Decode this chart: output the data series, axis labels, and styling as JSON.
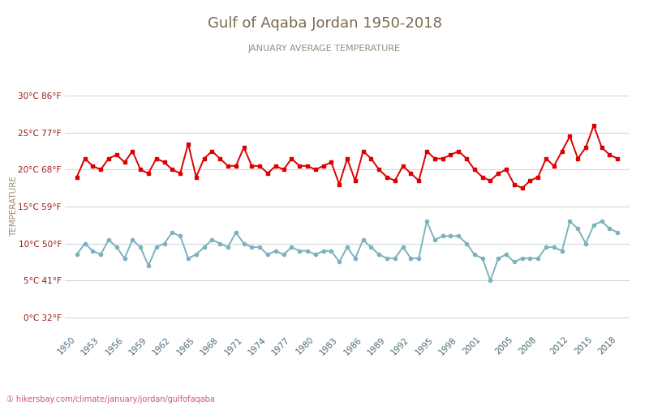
{
  "title": "Gulf of Aqaba Jordan 1950-2018",
  "subtitle": "JANUARY AVERAGE TEMPERATURE",
  "ylabel": "TEMPERATURE",
  "watermark": "① hikersbay.com/climate/january/jordan/gulfofaqaba",
  "title_color": "#7a6a50",
  "subtitle_color": "#9a8a7a",
  "bg_color": "#ffffff",
  "grid_color": "#d0d8dd",
  "years": [
    1950,
    1951,
    1952,
    1953,
    1954,
    1955,
    1956,
    1957,
    1958,
    1959,
    1960,
    1961,
    1962,
    1963,
    1964,
    1965,
    1966,
    1967,
    1968,
    1969,
    1970,
    1971,
    1972,
    1973,
    1974,
    1975,
    1976,
    1977,
    1978,
    1979,
    1980,
    1981,
    1982,
    1983,
    1984,
    1985,
    1986,
    1987,
    1988,
    1989,
    1990,
    1991,
    1992,
    1993,
    1994,
    1995,
    1996,
    1997,
    1998,
    1999,
    2000,
    2001,
    2002,
    2003,
    2004,
    2005,
    2006,
    2007,
    2008,
    2009,
    2010,
    2011,
    2012,
    2013,
    2014,
    2015,
    2016,
    2017,
    2018
  ],
  "day_temps": [
    19.0,
    21.5,
    20.5,
    20.0,
    21.5,
    22.0,
    21.0,
    22.5,
    20.0,
    19.5,
    21.5,
    21.0,
    20.0,
    19.5,
    23.5,
    19.0,
    21.5,
    22.5,
    21.5,
    20.5,
    20.5,
    23.0,
    20.5,
    20.5,
    19.5,
    20.5,
    20.0,
    21.5,
    20.5,
    20.5,
    20.0,
    20.5,
    21.0,
    18.0,
    21.5,
    18.5,
    22.5,
    21.5,
    20.0,
    19.0,
    18.5,
    20.5,
    19.5,
    18.5,
    22.5,
    21.5,
    21.5,
    22.0,
    22.5,
    21.5,
    20.0,
    19.0,
    18.5,
    19.5,
    20.0,
    18.0,
    17.5,
    18.5,
    19.0,
    21.5,
    20.5,
    22.5,
    24.5,
    21.5,
    23.0,
    26.0,
    23.0,
    22.0,
    21.5
  ],
  "night_temps": [
    8.5,
    10.0,
    9.0,
    8.5,
    10.5,
    9.5,
    8.0,
    10.5,
    9.5,
    7.0,
    9.5,
    10.0,
    11.5,
    11.0,
    8.0,
    8.5,
    9.5,
    10.5,
    10.0,
    9.5,
    11.5,
    10.0,
    9.5,
    9.5,
    8.5,
    9.0,
    8.5,
    9.5,
    9.0,
    9.0,
    8.5,
    9.0,
    9.0,
    7.5,
    9.5,
    8.0,
    10.5,
    9.5,
    8.5,
    8.0,
    8.0,
    9.5,
    8.0,
    8.0,
    13.0,
    10.5,
    11.0,
    11.0,
    11.0,
    10.0,
    8.5,
    8.0,
    5.0,
    8.0,
    8.5,
    7.5,
    8.0,
    8.0,
    8.0,
    9.5,
    9.5,
    9.0,
    13.0,
    12.0,
    10.0,
    12.5,
    13.0,
    12.0,
    11.5
  ],
  "xtick_years": [
    1950,
    1953,
    1956,
    1959,
    1962,
    1965,
    1968,
    1971,
    1974,
    1977,
    1980,
    1983,
    1986,
    1989,
    1992,
    1995,
    1998,
    2001,
    2005,
    2008,
    2012,
    2015,
    2018
  ],
  "yticks_c": [
    0,
    5,
    10,
    15,
    20,
    25,
    30
  ],
  "yticks_f": [
    32,
    41,
    50,
    59,
    68,
    77,
    86
  ],
  "ylim": [
    -2,
    32
  ],
  "day_color": "#dd0000",
  "night_color": "#7ab3be",
  "marker_size": 3,
  "line_width": 1.4
}
